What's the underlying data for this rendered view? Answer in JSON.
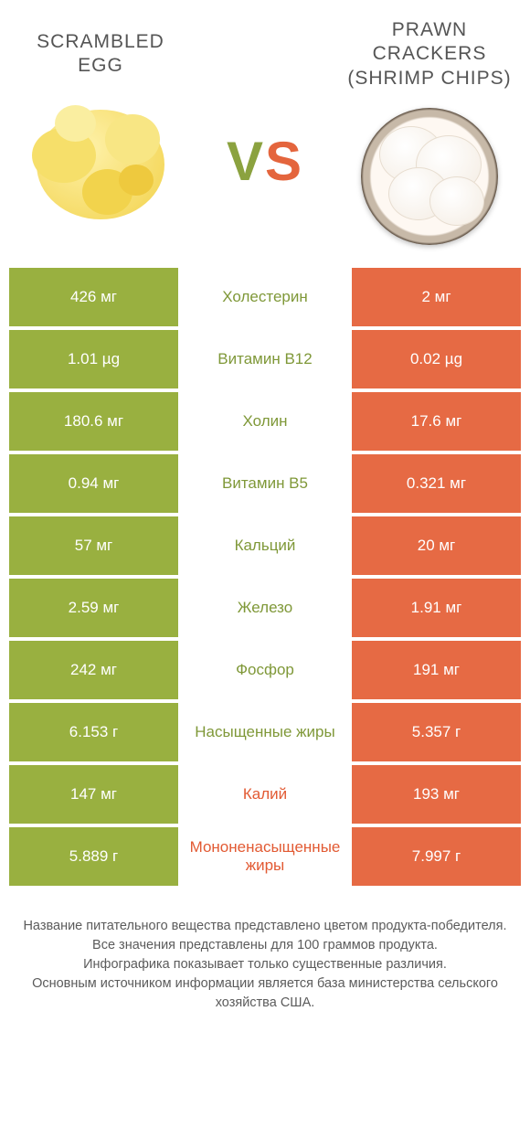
{
  "colors": {
    "green_bg": "#99b040",
    "orange_bg": "#e66a44",
    "green_text": "#7f9838",
    "orange_text": "#e25a33",
    "body_text": "#5b5b5b",
    "title_text": "#555555"
  },
  "header": {
    "left_title": "SCRAMBLED EGG",
    "right_title": "PRAWN CRACKERS (SHRIMP CHIPS)",
    "vs_v": "V",
    "vs_s": "S"
  },
  "table": {
    "rows": [
      {
        "left": "426 мг",
        "label": "Холестерин",
        "right": "2 мг",
        "winner": "left"
      },
      {
        "left": "1.01 µg",
        "label": "Витамин B12",
        "right": "0.02 µg",
        "winner": "left"
      },
      {
        "left": "180.6 мг",
        "label": "Холин",
        "right": "17.6 мг",
        "winner": "left"
      },
      {
        "left": "0.94 мг",
        "label": "Витамин B5",
        "right": "0.321 мг",
        "winner": "left"
      },
      {
        "left": "57 мг",
        "label": "Кальций",
        "right": "20 мг",
        "winner": "left"
      },
      {
        "left": "2.59 мг",
        "label": "Железо",
        "right": "1.91 мг",
        "winner": "left"
      },
      {
        "left": "242 мг",
        "label": "Фосфор",
        "right": "191 мг",
        "winner": "left"
      },
      {
        "left": "6.153 г",
        "label": "Насыщенные жиры",
        "right": "5.357 г",
        "winner": "left"
      },
      {
        "left": "147 мг",
        "label": "Калий",
        "right": "193 мг",
        "winner": "right"
      },
      {
        "left": "5.889 г",
        "label": "Мононенасыщенные жиры",
        "right": "7.997 г",
        "winner": "right"
      }
    ]
  },
  "footer": {
    "line1": "Название питательного вещества представлено цветом продукта-победителя.",
    "line2": "Все значения представлены для 100 граммов продукта.",
    "line3": "Инфографика показывает только существенные различия.",
    "line4": "Основным источником информации является база министерства сельского хозяйства США."
  }
}
